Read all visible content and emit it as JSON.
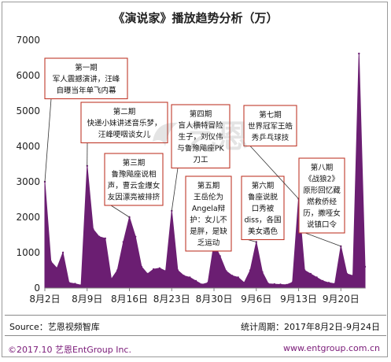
{
  "chart_data": {
    "type": "area",
    "title": "《演说家》播放趋势分析（万）",
    "ylim": [
      0,
      7000
    ],
    "yticks": [
      "0",
      "1000",
      "2000",
      "3000",
      "4000",
      "5000",
      "6000",
      "7000"
    ],
    "xticks": [
      "8月2日",
      "8月9日",
      "8月16日",
      "8月23日",
      "8月30日",
      "9月6日",
      "9月13日",
      "9月20日"
    ],
    "grid": false,
    "legend": "none",
    "colors": {
      "fill": "#6b1e72",
      "callout_border": "#c0392b"
    },
    "x": [
      "8月2日",
      "8月3日",
      "8月4日",
      "8月5日",
      "8月6日",
      "8月7日",
      "8月8日",
      "8月9日",
      "8月10日",
      "8月11日",
      "8月12日",
      "8月13日",
      "8月14日",
      "8月15日",
      "8月16日",
      "8月17日",
      "8月18日",
      "8月19日",
      "8月20日",
      "8月21日",
      "8月22日",
      "8月23日",
      "8月24日",
      "8月25日",
      "8月26日",
      "8月27日",
      "8月28日",
      "8月29日",
      "8月30日",
      "8月31日",
      "9月1日",
      "9月2日",
      "9月3日",
      "9月4日",
      "9月5日",
      "9月6日",
      "9月7日",
      "9月8日",
      "9月9日",
      "9月10日",
      "9月11日",
      "9月12日",
      "9月13日",
      "9月14日",
      "9月15日",
      "9月16日",
      "9月17日",
      "9月18日",
      "9月19日",
      "9月20日",
      "9月21日",
      "9月22日",
      "9月23日",
      "9月24日"
    ],
    "values": [
      3000,
      750,
      560,
      1000,
      150,
      120,
      80,
      3450,
      1660,
      1450,
      1400,
      250,
      500,
      1300,
      2000,
      1450,
      600,
      400,
      530,
      560,
      480,
      2180,
      500,
      350,
      300,
      200,
      100,
      150,
      1250,
      900,
      480,
      350,
      300,
      150,
      500,
      1300,
      450,
      120,
      110,
      100,
      90,
      160,
      2520,
      500,
      400,
      300,
      200,
      150,
      120,
      1180,
      400,
      350,
      6620,
      600
    ],
    "annotations": [
      {
        "text": [
          "第一期",
          "军人震撼演讲，汪峰",
          "自曝当年单飞内幕"
        ]
      },
      {
        "text": [
          "第二期",
          "快递小妹讲述音乐梦，",
          "汪峰哽咽谈女儿"
        ]
      },
      {
        "text": [
          "第三期",
          "鲁豫飚座说相",
          "声，曹云金爆女",
          "友因漂亮被排挤"
        ]
      },
      {
        "text": [
          "第四期",
          "盲人横特冒险",
          "生子，刘仪伟",
          "与鲁豫飚座PK",
          "刀工"
        ]
      },
      {
        "text": [
          "第五期",
          "王岳伦为",
          "Angela辩",
          "护：女儿不",
          "是胖，是缺",
          "乏运动"
        ]
      },
      {
        "text": [
          "第六期",
          "鲁座说脱",
          "口秀被",
          "diss，各国",
          "美女遇色"
        ]
      },
      {
        "text": [
          "第七期",
          "世界冠军王皓",
          "秀乒乓球技"
        ]
      },
      {
        "text": [
          "第八期",
          "《战狼2》",
          "原形回忆藏",
          "燃救侨经",
          "历，撒哑女",
          "说镇口令"
        ]
      }
    ]
  },
  "footer": {
    "source": "Source：艺恩视频智库",
    "period": "统计周期：2017年8月2日-9月24日"
  },
  "bottom": {
    "copyright": "©2017.10  艺恩EntGroup Inc.",
    "website": "www.entgroup.com.cn"
  },
  "watermark": {
    "text": "艺恩"
  }
}
